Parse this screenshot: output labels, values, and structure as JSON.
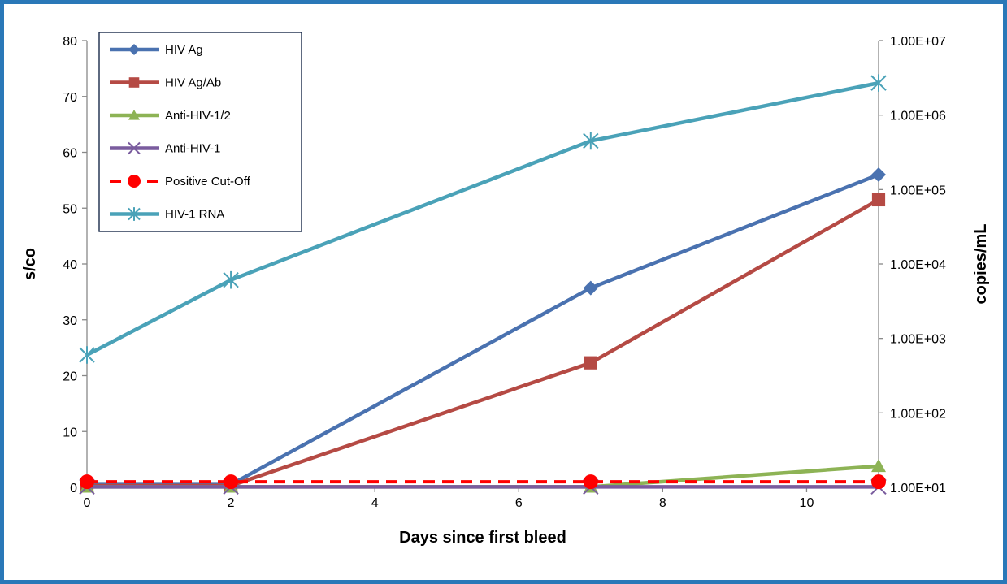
{
  "chart_data": {
    "type": "line",
    "title": "",
    "xlabel": "Days since first bleed",
    "ylabel": "s/co",
    "y2label": "copies/mL",
    "xlim": [
      0,
      11
    ],
    "ylim": [
      0,
      80
    ],
    "y2_scale": "log",
    "y2lim": [
      10,
      10000000
    ],
    "grid": false,
    "legend_position": "top-left",
    "x_ticks": [
      "0",
      "2",
      "4",
      "6",
      "8",
      "10"
    ],
    "y_ticks": [
      "0",
      "10",
      "20",
      "30",
      "40",
      "50",
      "60",
      "70",
      "80"
    ],
    "y2_ticks": [
      "1.00E+01",
      "1.00E+02",
      "1.00E+03",
      "1.00E+04",
      "1.00E+05",
      "1.00E+06",
      "1.00E+07"
    ],
    "x": [
      0,
      2,
      7,
      11
    ],
    "series": [
      {
        "name": "HIV Ag",
        "axis": "left",
        "values": [
          0.5,
          0.5,
          35.7,
          56
        ],
        "color": "#4a72b0",
        "marker": "diamond",
        "dash": false
      },
      {
        "name": "HIV Ag/Ab",
        "axis": "left",
        "values": [
          0.3,
          0.3,
          22.3,
          51.5
        ],
        "color": "#b54a44",
        "marker": "square",
        "dash": false
      },
      {
        "name": "Anti-HIV-1/2",
        "axis": "left",
        "values": [
          0.1,
          0.1,
          0.1,
          3.8
        ],
        "color": "#8db355",
        "marker": "triangle",
        "dash": false
      },
      {
        "name": "Anti-HIV-1",
        "axis": "left",
        "values": [
          0.1,
          0.1,
          0.1,
          0.1
        ],
        "color": "#7a5c9e",
        "marker": "x",
        "dash": false
      },
      {
        "name": "Positive Cut-Off",
        "axis": "left",
        "values": [
          1,
          1,
          1,
          1
        ],
        "color": "#ff0000",
        "marker": "circle",
        "dash": true
      },
      {
        "name": "HIV-1 RNA",
        "axis": "right",
        "values": [
          600,
          6100,
          450000,
          2700000
        ],
        "color": "#4aa2b8",
        "marker": "star",
        "dash": false
      }
    ]
  }
}
